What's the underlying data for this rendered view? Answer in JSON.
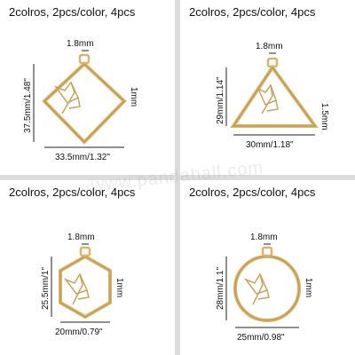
{
  "panels": [
    {
      "shape": "rhombus",
      "header": "2colros, 2pcs/color, 4pcs",
      "ring": "1.8mm",
      "height": "37.5mm/1.48\"",
      "width": "33.5mm/1.32\"",
      "thickness": "1mm"
    },
    {
      "shape": "triangle",
      "header": "2colros, 2pcs/color, 4pcs",
      "ring": "1.8mm",
      "height": "29mm/1.14\"",
      "width": "30mm/1.18\"",
      "thickness": "1.5mm"
    },
    {
      "shape": "hexagon",
      "header": "2colros, 2pcs/color, 4pcs",
      "ring": "1.8mm",
      "height": "25.5mm/1\"",
      "width": "20mm/0.79\"",
      "thickness": "1mm"
    },
    {
      "shape": "circle",
      "header": "2colros, 2pcs/color, 4pcs",
      "ring": "1.8mm",
      "height": "28mm/1.1\"",
      "width": "25mm/0.98\"",
      "thickness": "1mm"
    }
  ],
  "watermark": "www.pandahall.com",
  "colors": {
    "gold": "#d9b46a",
    "gold_dark": "#b8914a",
    "line": "#222222"
  }
}
